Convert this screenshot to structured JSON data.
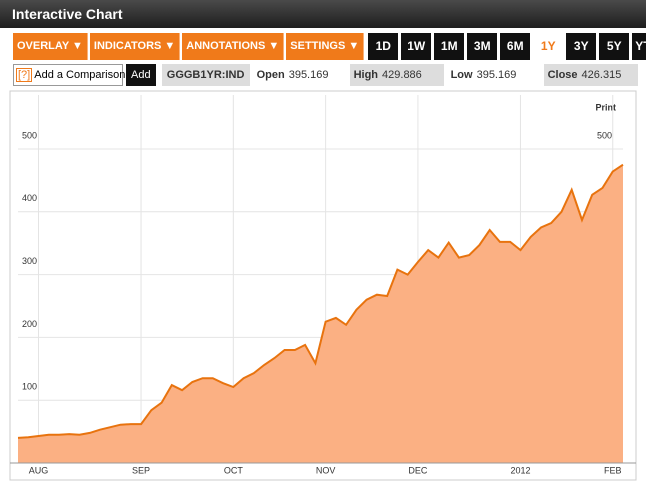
{
  "header": {
    "title": "Interactive Chart"
  },
  "toolbar": {
    "menus": [
      "OVERLAY ▼",
      "INDICATORS ▼",
      "ANNOTATIONS ▼",
      "SETTINGS ▼"
    ],
    "ranges": [
      "1D",
      "1W",
      "1M",
      "3M",
      "6M",
      "1Y",
      "3Y",
      "5Y",
      "YTD"
    ]
  },
  "comparison": {
    "help": "[?]",
    "placeholder": "Add a Comparison",
    "button": "Add"
  },
  "quote": {
    "ticker": "GGGB1YR:IND",
    "fields": [
      {
        "label": "Open",
        "value": 395.169
      },
      {
        "label": "High",
        "value": 429.886
      },
      {
        "label": "Low",
        "value": 395.169
      },
      {
        "label": "Close",
        "value": 426.315
      }
    ]
  },
  "print": "Print",
  "chart_data": {
    "type": "area",
    "categories": [
      null,
      null,
      "AUG",
      null,
      null,
      null,
      null,
      null,
      null,
      null,
      null,
      null,
      "SEP",
      null,
      null,
      null,
      null,
      null,
      null,
      null,
      null,
      "OCT",
      null,
      null,
      null,
      null,
      null,
      null,
      null,
      null,
      "NOV",
      null,
      null,
      null,
      null,
      null,
      null,
      null,
      null,
      "DEC",
      null,
      null,
      null,
      null,
      null,
      null,
      null,
      null,
      null,
      "2012",
      null,
      null,
      null,
      null,
      null,
      null,
      null,
      null,
      "FEB",
      null
    ],
    "values": [
      40,
      41,
      43,
      45,
      45,
      46,
      45,
      48,
      53,
      57,
      61,
      62,
      62,
      84,
      96,
      124,
      116,
      129,
      135,
      135,
      127,
      121,
      135,
      143,
      156,
      167,
      180,
      180,
      188,
      159,
      225,
      231,
      220,
      244,
      260,
      268,
      266,
      308,
      300,
      320,
      339,
      327,
      351,
      327,
      331,
      347,
      371,
      352,
      352,
      339,
      360,
      375,
      382,
      400,
      435,
      387,
      427,
      438,
      464,
      475
    ],
    "color": "#e8730e",
    "fill": "#fbb083",
    "ylim": [
      0,
      586
    ],
    "yticks": [
      100,
      200,
      300,
      400,
      500
    ],
    "grid": true
  }
}
